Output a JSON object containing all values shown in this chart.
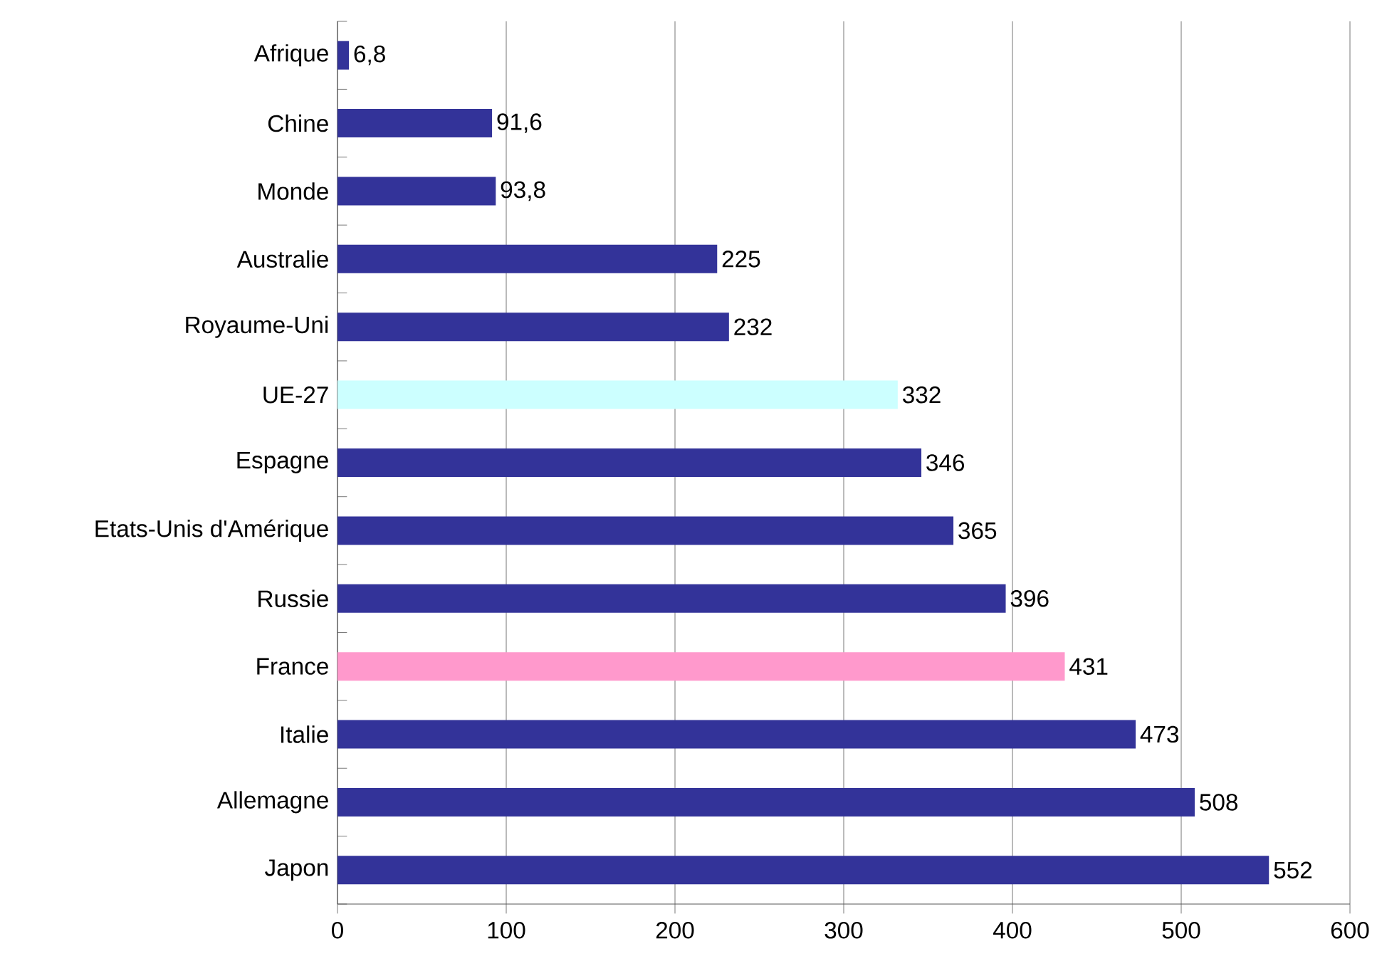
{
  "chart_data": {
    "type": "bar",
    "orientation": "horizontal",
    "categories": [
      "Afrique",
      "Chine",
      "Monde",
      "Australie",
      "Royaume-Uni",
      "UE-27",
      "Espagne",
      "Etats-Unis d'Amérique",
      "Russie",
      "France",
      "Italie",
      "Allemagne",
      "Japon"
    ],
    "values": [
      6.8,
      91.6,
      93.8,
      225,
      232,
      332,
      346,
      365,
      396,
      431,
      473,
      508,
      552
    ],
    "value_labels": [
      "6,8",
      "91,6",
      "93,8",
      "225",
      "232",
      "332",
      "346",
      "365",
      "396",
      "431",
      "473",
      "508",
      "552"
    ],
    "colors": [
      "#333399",
      "#333399",
      "#333399",
      "#333399",
      "#333399",
      "#ccffff",
      "#333399",
      "#333399",
      "#333399",
      "#ff99cc",
      "#333399",
      "#333399",
      "#333399"
    ],
    "xlim": [
      0,
      600
    ],
    "xticks": [
      0,
      100,
      200,
      300,
      400,
      500,
      600
    ],
    "grid": "x"
  }
}
